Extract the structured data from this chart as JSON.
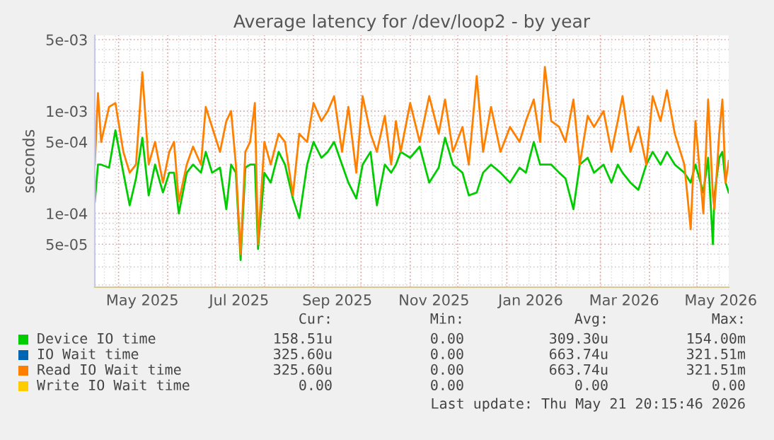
{
  "chart_data": {
    "type": "line",
    "title": "Average latency for /dev/loop2 - by year",
    "ylabel": "seconds",
    "x": [
      "2025-04-16",
      "2025-04-18",
      "2025-04-20",
      "2025-04-25",
      "2025-04-29",
      "2025-05-04",
      "2025-05-08",
      "2025-05-12",
      "2025-05-16",
      "2025-05-20",
      "2025-05-24",
      "2025-05-29",
      "2025-06-02",
      "2025-06-05",
      "2025-06-08",
      "2025-06-13",
      "2025-06-17",
      "2025-06-22",
      "2025-06-25",
      "2025-06-29",
      "2025-07-04",
      "2025-07-08",
      "2025-07-11",
      "2025-07-14",
      "2025-07-17",
      "2025-07-20",
      "2025-07-23",
      "2025-07-26",
      "2025-07-28",
      "2025-08-01",
      "2025-08-05",
      "2025-08-10",
      "2025-08-14",
      "2025-08-19",
      "2025-08-23",
      "2025-08-28",
      "2025-09-01",
      "2025-09-06",
      "2025-09-10",
      "2025-09-14",
      "2025-09-19",
      "2025-09-23",
      "2025-09-28",
      "2025-10-02",
      "2025-10-07",
      "2025-10-11",
      "2025-10-16",
      "2025-10-20",
      "2025-10-23",
      "2025-10-26",
      "2025-11-01",
      "2025-11-07",
      "2025-11-13",
      "2025-11-19",
      "2025-11-23",
      "2025-11-28",
      "2025-12-04",
      "2025-12-08",
      "2025-12-13",
      "2025-12-17",
      "2025-12-22",
      "2025-12-28",
      "2026-01-03",
      "2026-01-09",
      "2026-01-13",
      "2026-01-18",
      "2026-01-22",
      "2026-01-25",
      "2026-01-29",
      "2026-02-03",
      "2026-02-07",
      "2026-02-12",
      "2026-02-16",
      "2026-02-21",
      "2026-02-25",
      "2026-03-03",
      "2026-03-08",
      "2026-03-12",
      "2026-03-15",
      "2026-03-20",
      "2026-03-25",
      "2026-03-30",
      "2026-04-03",
      "2026-04-08",
      "2026-04-12",
      "2026-04-17",
      "2026-04-23",
      "2026-04-27",
      "2026-04-30",
      "2026-05-05",
      "2026-05-08",
      "2026-05-11",
      "2026-05-12",
      "2026-05-15",
      "2026-05-17",
      "2026-05-19",
      "2026-05-21"
    ],
    "series": [
      {
        "name": "Device IO time",
        "color": "#00cc00",
        "values": [
          0.00013,
          0.0003,
          0.0003,
          0.00028,
          0.00065,
          0.00025,
          0.00012,
          0.00022,
          0.00055,
          0.00015,
          0.0003,
          0.00016,
          0.00025,
          0.00025,
          0.0001,
          0.00025,
          0.0003,
          0.00025,
          0.0004,
          0.00025,
          0.00028,
          0.00011,
          0.0003,
          0.00025,
          3.5e-05,
          0.00028,
          0.0003,
          0.0003,
          4.5e-05,
          0.00025,
          0.0002,
          0.0004,
          0.0003,
          0.00014,
          9e-05,
          0.0003,
          0.0005,
          0.00035,
          0.0004,
          0.0005,
          0.0003,
          0.0002,
          0.00014,
          0.0003,
          0.0004,
          0.00012,
          0.0003,
          0.00025,
          0.0003,
          0.0004,
          0.00035,
          0.00045,
          0.0002,
          0.00028,
          0.00055,
          0.0003,
          0.00025,
          0.00015,
          0.00016,
          0.00025,
          0.0003,
          0.00025,
          0.0002,
          0.00028,
          0.00025,
          0.0005,
          0.0003,
          0.0003,
          0.0003,
          0.00025,
          0.00022,
          0.00011,
          0.0003,
          0.00035,
          0.00025,
          0.0003,
          0.0002,
          0.0003,
          0.00025,
          0.0002,
          0.00017,
          0.0003,
          0.0004,
          0.0003,
          0.0004,
          0.0003,
          0.00025,
          0.0002,
          0.0003,
          0.00016,
          0.00035,
          5e-05,
          0.00015,
          0.00035,
          0.0004,
          0.0002,
          0.00016
        ]
      },
      {
        "name": "IO Wait time",
        "color": "#0066b3",
        "values": [
          null,
          null,
          null,
          null,
          null,
          null,
          null,
          null,
          null,
          null,
          null,
          null,
          null,
          null,
          null,
          null,
          null,
          null,
          null,
          null,
          null,
          null,
          null,
          null,
          null,
          null,
          null,
          null,
          null,
          null,
          null,
          null,
          null,
          null,
          null,
          null,
          null,
          null,
          null,
          null,
          null,
          null,
          null,
          null,
          null,
          null,
          null,
          null,
          null,
          null,
          null,
          null,
          null,
          null,
          null,
          null,
          null,
          null,
          null,
          null,
          null,
          null,
          null,
          null,
          null,
          null,
          null,
          null,
          null,
          null,
          null,
          null,
          null,
          null,
          null,
          null,
          null,
          null,
          null,
          null,
          null,
          null,
          null,
          null,
          null,
          null,
          null,
          null,
          null,
          null,
          null,
          null,
          null,
          null,
          null,
          null,
          null
        ]
      },
      {
        "name": "Read IO Wait time",
        "color": "#ff8000",
        "values": [
          0.0003,
          0.0015,
          0.0005,
          0.0011,
          0.0012,
          0.0004,
          0.00025,
          0.0003,
          0.0024,
          0.0003,
          0.0005,
          0.0002,
          0.0004,
          0.0005,
          0.00013,
          0.0003,
          0.00045,
          0.0003,
          0.0011,
          0.0007,
          0.0004,
          0.0008,
          0.001,
          0.0003,
          4e-05,
          0.0004,
          0.0005,
          0.0012,
          5e-05,
          0.0005,
          0.0003,
          0.0006,
          0.0005,
          0.00015,
          0.0006,
          0.0005,
          0.0012,
          0.0008,
          0.001,
          0.0014,
          0.0004,
          0.0011,
          0.00025,
          0.0014,
          0.0006,
          0.0004,
          0.0009,
          0.0003,
          0.0008,
          0.0004,
          0.0012,
          0.0005,
          0.0014,
          0.0006,
          0.0013,
          0.0004,
          0.0007,
          0.0003,
          0.0022,
          0.0004,
          0.0011,
          0.0004,
          0.0007,
          0.0005,
          0.0008,
          0.0013,
          0.0005,
          0.0027,
          0.0008,
          0.0007,
          0.0005,
          0.0013,
          0.0003,
          0.0009,
          0.0007,
          0.001,
          0.0004,
          0.0008,
          0.0014,
          0.0004,
          0.0007,
          0.0003,
          0.0014,
          0.0008,
          0.0016,
          0.0006,
          0.0003,
          7e-05,
          0.0008,
          0.0001,
          0.0013,
          0.00015,
          0.00011,
          0.0006,
          0.0013,
          0.0002,
          0.000326
        ]
      },
      {
        "name": "Write IO Wait time",
        "color": "#ffcc00",
        "values": [
          null,
          null,
          null,
          null,
          null,
          null,
          null,
          null,
          null,
          null,
          null,
          null,
          null,
          null,
          null,
          null,
          null,
          null,
          null,
          null,
          null,
          null,
          null,
          null,
          null,
          null,
          null,
          null,
          null,
          null,
          null,
          null,
          null,
          null,
          null,
          null,
          null,
          null,
          null,
          null,
          null,
          null,
          null,
          null,
          null,
          null,
          null,
          null,
          null,
          null,
          null,
          null,
          null,
          null,
          null,
          null,
          null,
          null,
          null,
          null,
          null,
          null,
          null,
          null,
          null,
          null,
          null,
          null,
          null,
          null,
          null,
          null,
          null,
          null,
          null,
          null,
          null,
          null,
          null,
          null,
          null,
          null,
          null,
          null,
          null,
          null,
          null,
          null,
          null,
          null,
          null,
          null,
          null,
          null,
          null,
          null,
          null
        ]
      }
    ],
    "log": "y",
    "xlim": [
      "2025-04-16",
      "2026-05-21"
    ],
    "xticks": [
      {
        "value": "2025-05-16",
        "label": "May 2025"
      },
      {
        "value": "2025-07-16",
        "label": "Jul 2025"
      },
      {
        "value": "2025-09-16",
        "label": "Sep 2025"
      },
      {
        "value": "2025-11-16",
        "label": "Nov 2025"
      },
      {
        "value": "2026-01-16",
        "label": "Jan 2026"
      },
      {
        "value": "2026-03-16",
        "label": "Mar 2026"
      },
      {
        "value": "2026-05-16",
        "label": "May 2026"
      }
    ],
    "ylim": [
      1.9e-05,
      0.0055
    ],
    "yticks": [
      {
        "value": 5e-05,
        "label": "5e-05"
      },
      {
        "value": 0.0001,
        "label": "1e-04"
      },
      {
        "value": 0.0005,
        "label": "5e-04"
      },
      {
        "value": 0.001,
        "label": "1e-03"
      },
      {
        "value": 0.005,
        "label": "5e-03"
      }
    ],
    "grid": true,
    "legend": "bottom",
    "marker": "none",
    "line_style": "solid",
    "annotations": [
      "Cur:",
      "Min:",
      "Avg:",
      "Max:",
      "158.51u",
      "0.00",
      "309.30u",
      "154.00m",
      "325.60u",
      "0.00",
      "663.74u",
      "321.51m",
      "325.60u",
      "0.00",
      "663.74u",
      "321.51m",
      "0.00",
      "0.00",
      "0.00",
      "0.00",
      "Last update: Thu May 21 20:15:46 2026"
    ]
  }
}
